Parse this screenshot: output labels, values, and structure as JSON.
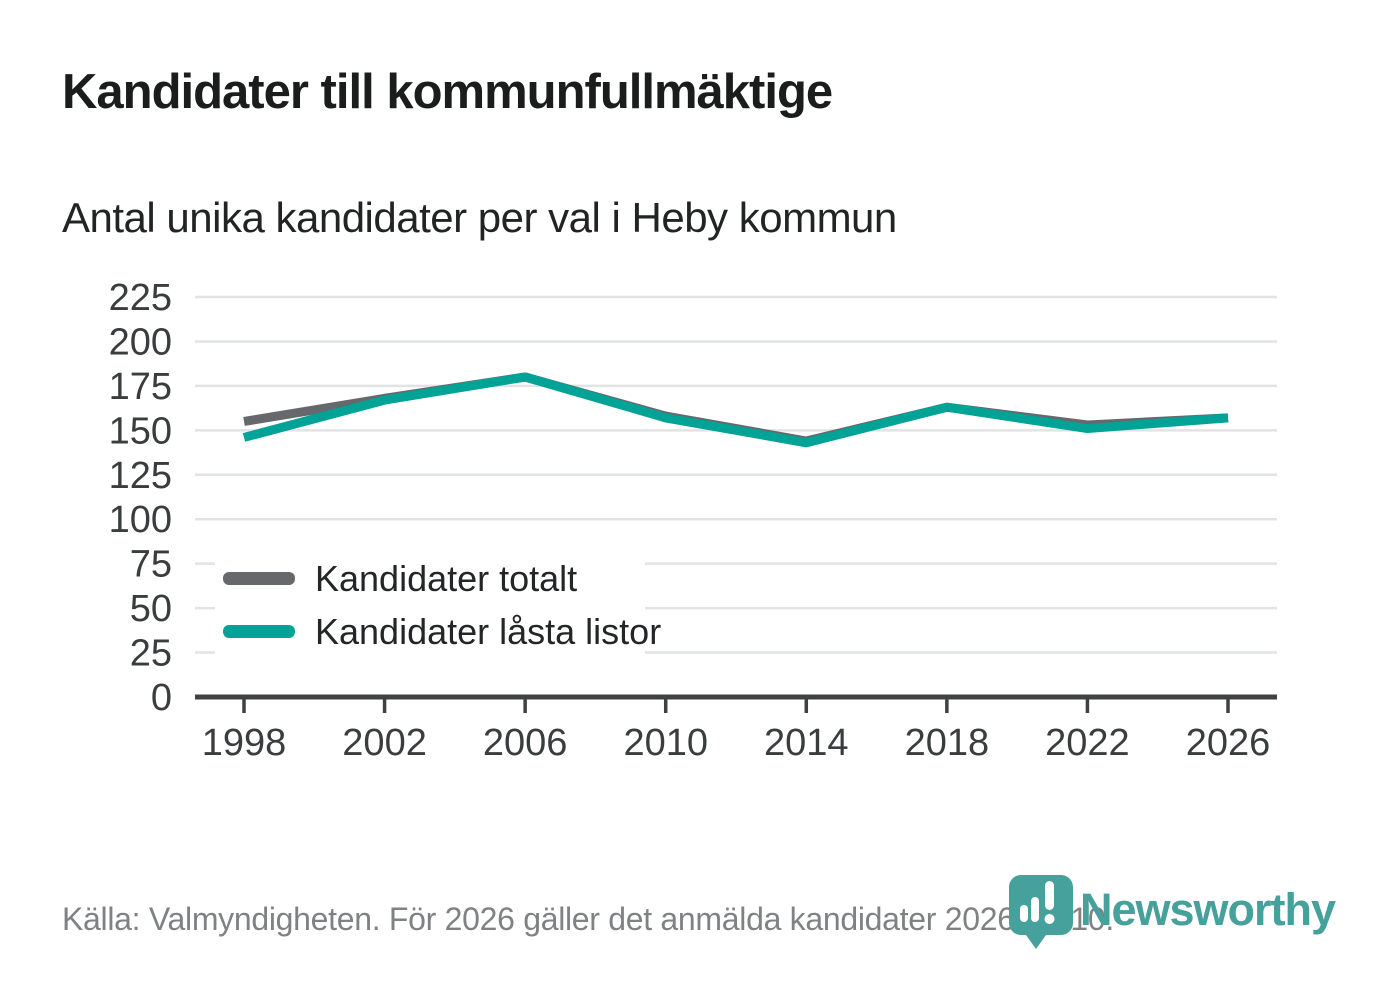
{
  "header": {
    "title": "Kandidater till kommunfullmäktige",
    "subtitle": "Antal unika kandidater per val i Heby kommun"
  },
  "chart_data": {
    "type": "line",
    "x": [
      1998,
      2002,
      2006,
      2010,
      2014,
      2018,
      2022,
      2026
    ],
    "series": [
      {
        "name": "Kandidater totalt",
        "color": "#66686b",
        "values": [
          155,
          168,
          180,
          158,
          144,
          163,
          153,
          157
        ]
      },
      {
        "name": "Kandidater låsta listor",
        "color": "#00a396",
        "values": [
          146,
          167,
          180,
          157,
          143,
          163,
          151,
          157
        ]
      }
    ],
    "ylim": [
      0,
      225
    ],
    "yticks": [
      0,
      25,
      50,
      75,
      100,
      125,
      150,
      175,
      200,
      225
    ],
    "grid": true,
    "legend_position": "inside bottom-left",
    "xlabel": "",
    "ylabel": ""
  },
  "footer": {
    "source": "Källa: Valmyndigheten. För 2026 gäller det anmälda kandidater 2026-04-10.",
    "brand": "Newsworthy"
  },
  "colors": {
    "series_gray": "#66686b",
    "series_teal": "#00a396",
    "brand_teal": "#46a09b",
    "grid": "#e2e3e4",
    "axis": "#3f4142",
    "tick_text": "#3a3d3e",
    "legend_text": "#232526",
    "muted_text": "#7f8183"
  }
}
